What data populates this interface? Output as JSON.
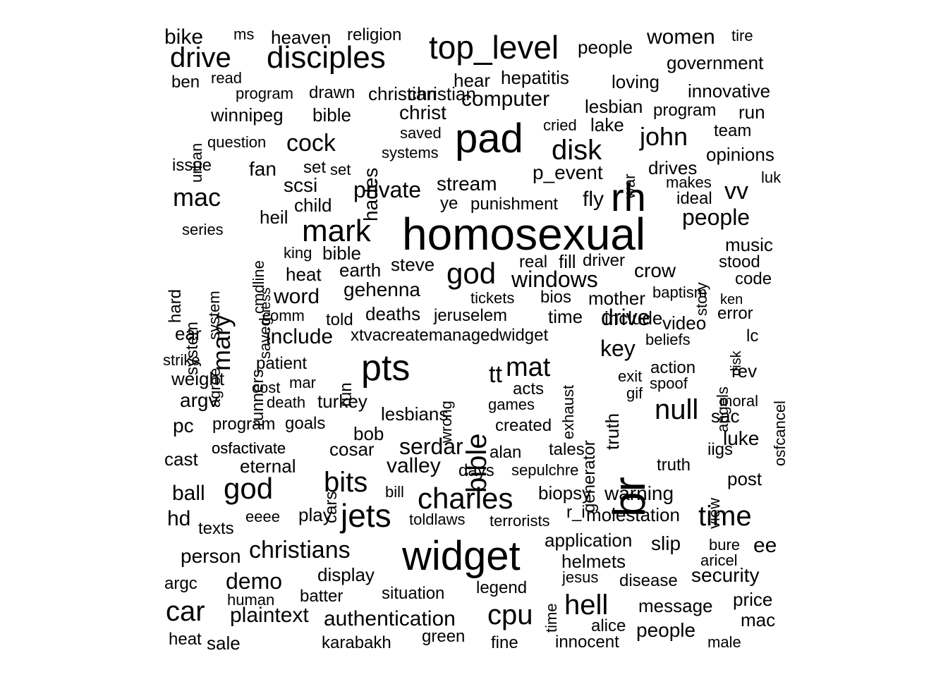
{
  "chart_data": {
    "type": "wordcloud",
    "color": "#000000",
    "words": [
      "homosexual",
      "widget",
      "pad",
      "br",
      "rh",
      "pts",
      "jets",
      "top_level",
      "disciples",
      "god",
      "charles",
      "bible",
      "mark",
      "cpu",
      "car",
      "bits",
      "hell",
      "drive",
      "time",
      "god",
      "disk",
      "mat",
      "null",
      "john",
      "christians",
      "computer",
      "mary",
      "serdar",
      "mac",
      "cock",
      "windows",
      "vv",
      "people",
      "private",
      "demo",
      "key",
      "drive",
      "authentication",
      "plaintext",
      "stream",
      "valley",
      "include",
      "gehenna",
      "word",
      "security",
      "women",
      "people",
      "bike",
      "winnipeg",
      "price",
      "message",
      "slip",
      "crow",
      "christ",
      "hades",
      "scsi",
      "fly",
      "fan",
      "child",
      "ball",
      "mac",
      "p_event",
      "christian",
      "steve",
      "earth",
      "hepatitis",
      "lake",
      "saved",
      "eternal",
      "cars",
      "deaths",
      "display",
      "bob",
      "warning",
      "biopsy",
      "rev",
      "lc",
      "hear",
      "innovative",
      "government",
      "heaven",
      "person",
      "luke",
      "turkey",
      "people",
      "molestation",
      "ee",
      "sale",
      "cosar",
      "tickets",
      "application",
      "time",
      "music",
      "sac",
      "ideal",
      "run",
      "drives",
      "loving",
      "opinions",
      "video",
      "helmets",
      "lesbian",
      "post",
      "bible",
      "lesbians",
      "tt",
      "heil",
      "weight",
      "cast",
      "heat",
      "stood",
      "code",
      "drawn",
      "christian",
      "team",
      "ear",
      "mother",
      "jeruselem",
      "include",
      "runners",
      "goals",
      "pc",
      "hd",
      "texts",
      "read",
      "ben",
      "ms",
      "tire",
      "religion",
      "told",
      "patient",
      "eeee",
      "play",
      "batter",
      "human",
      "system",
      "days",
      "legend",
      "situation",
      "alan",
      "tales",
      "created",
      "games",
      "acts",
      "real",
      "fill",
      "bios",
      "driver",
      "set",
      "set",
      "systems",
      "saved",
      "question",
      "urban",
      "issue",
      "series",
      "king",
      "bible",
      "guess",
      "comm",
      "agree",
      "hard",
      "system",
      "cmdline",
      "strike",
      "argv",
      "argc",
      "heat",
      "karabakh",
      "green",
      "fine",
      "innocent",
      "alice",
      "male",
      "aricel",
      "bure",
      "moral",
      "iigs",
      "view",
      "gif",
      "exit",
      "spoof",
      "action",
      "truth",
      "exhaust",
      "generator",
      "truth",
      "war",
      "cried",
      "makes",
      "luk",
      "story",
      "ken",
      "error",
      "disk",
      "angels",
      "osfcancel",
      "beliefs",
      "baptism",
      "program",
      "program",
      "program",
      "punishment",
      "ye",
      "wrong",
      "run",
      "death",
      "cost",
      "mar",
      "osfactivate",
      "sepulchre",
      "toldlaws",
      "terrorists",
      "r_i",
      "bill",
      "xtvacreatemanagedwidget",
      "jesus",
      "disease",
      "time",
      "osfactivate"
    ]
  }
}
